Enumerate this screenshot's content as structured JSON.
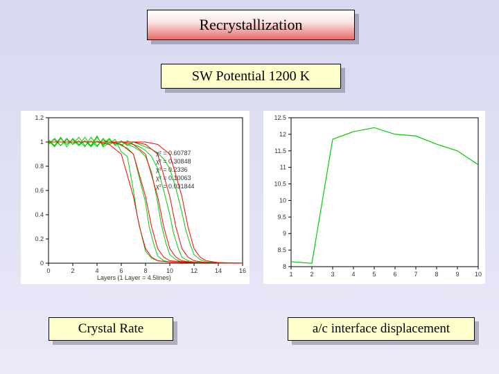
{
  "title": "Recrystallization",
  "subtitle": "SW Potential  1200 K",
  "label_left": "Crystal Rate",
  "label_right": "a/c interface displacement",
  "left_chart": {
    "type": "line",
    "background_color": "#ffffff",
    "axis_color": "#000000",
    "grid_on": false,
    "xlim": [
      0,
      16
    ],
    "ylim": [
      0,
      1.2
    ],
    "xtick_step": 2,
    "ytick_step": 0.2,
    "x_ticks": [
      "0",
      "2",
      "4",
      "6",
      "8",
      "10",
      "12",
      "14",
      "16"
    ],
    "y_ticks": [
      "0",
      "0.2",
      "0.4",
      "0.6",
      "0.8",
      "1",
      "1.2"
    ],
    "xlabel": "Layers (1 Layer = 4.5lines)",
    "label_fontsize": 9,
    "line_width": 1.0,
    "noise_color": "#00cc00",
    "fit_color": "#ff0000",
    "legend_items": [
      "χ² = 0.60787",
      "χ² = 0.30848",
      "χ² = 0.2336",
      "χ² = 0.10063",
      "χ² = 0.031844"
    ],
    "series": [
      {
        "x": [
          0,
          1,
          2,
          3,
          4,
          5,
          6,
          7,
          7.5,
          8,
          8.5,
          9,
          10,
          12,
          16
        ],
        "y": [
          1.0,
          1.0,
          1.0,
          1.0,
          1.0,
          0.98,
          0.9,
          0.55,
          0.3,
          0.12,
          0.05,
          0.02,
          0.01,
          0.005,
          0.0
        ]
      },
      {
        "x": [
          0,
          1,
          2,
          3,
          4,
          5,
          6,
          7,
          8,
          8.5,
          9,
          9.5,
          10,
          12,
          16
        ],
        "y": [
          1.0,
          1.0,
          1.0,
          1.0,
          1.0,
          1.0,
          0.98,
          0.9,
          0.55,
          0.3,
          0.12,
          0.05,
          0.02,
          0.005,
          0.0
        ]
      },
      {
        "x": [
          0,
          1,
          2,
          3,
          4,
          5,
          6,
          7,
          8,
          9,
          9.5,
          10,
          10.5,
          11,
          12,
          16
        ],
        "y": [
          1.0,
          1.0,
          1.0,
          1.0,
          1.0,
          1.0,
          1.0,
          0.98,
          0.9,
          0.55,
          0.3,
          0.12,
          0.05,
          0.02,
          0.005,
          0.0
        ]
      },
      {
        "x": [
          0,
          1,
          2,
          3,
          4,
          5,
          6,
          7,
          8,
          9,
          10,
          10.5,
          11,
          11.5,
          12,
          13,
          16
        ],
        "y": [
          1.0,
          1.0,
          1.0,
          1.0,
          1.0,
          1.0,
          1.0,
          1.0,
          0.98,
          0.9,
          0.55,
          0.3,
          0.12,
          0.05,
          0.02,
          0.005,
          0.0
        ]
      },
      {
        "x": [
          0,
          1,
          2,
          3,
          4,
          5,
          6,
          7,
          8,
          9,
          10,
          11,
          11.5,
          12,
          12.5,
          13,
          14,
          16
        ],
        "y": [
          1.0,
          1.0,
          1.0,
          1.0,
          1.0,
          1.0,
          1.0,
          1.0,
          1.0,
          0.98,
          0.9,
          0.55,
          0.3,
          0.12,
          0.05,
          0.02,
          0.005,
          0.0
        ]
      }
    ],
    "noise_series": [
      {
        "x": [
          0,
          0.5,
          1,
          1.5,
          2,
          2.5,
          3,
          3.5,
          4,
          4.5,
          5,
          5.5,
          6,
          6.5,
          7,
          7.3,
          7.7,
          8,
          8.5,
          9,
          10,
          12,
          16
        ],
        "y": [
          1.02,
          0.97,
          1.04,
          0.96,
          1.03,
          0.98,
          1.01,
          0.97,
          1.05,
          0.96,
          0.99,
          1.02,
          0.92,
          0.88,
          0.6,
          0.4,
          0.22,
          0.1,
          0.04,
          0.02,
          0.01,
          0.005,
          0.0
        ]
      },
      {
        "x": [
          0,
          0.5,
          1,
          1.5,
          2,
          2.5,
          3,
          3.5,
          4,
          4.5,
          5,
          5.5,
          6,
          6.5,
          7,
          7.5,
          8,
          8.3,
          8.7,
          9,
          9.5,
          10,
          12,
          16
        ],
        "y": [
          0.98,
          1.03,
          0.97,
          1.02,
          0.98,
          1.04,
          0.97,
          1.01,
          0.96,
          1.03,
          0.98,
          1.0,
          0.97,
          0.95,
          0.9,
          0.7,
          0.5,
          0.3,
          0.15,
          0.06,
          0.02,
          0.01,
          0.005,
          0.0
        ]
      },
      {
        "x": [
          0,
          0.5,
          1,
          1.5,
          2,
          2.5,
          3,
          3.5,
          4,
          4.5,
          5,
          5.5,
          6,
          6.5,
          7,
          7.5,
          8,
          8.5,
          9,
          9.3,
          9.7,
          10,
          10.5,
          11,
          12,
          16
        ],
        "y": [
          1.01,
          0.96,
          1.03,
          0.98,
          1.02,
          0.97,
          1.04,
          0.96,
          1.01,
          0.98,
          1.03,
          0.97,
          1.0,
          0.98,
          0.96,
          0.93,
          0.88,
          0.75,
          0.5,
          0.32,
          0.16,
          0.07,
          0.03,
          0.01,
          0.005,
          0.0
        ]
      },
      {
        "x": [
          0,
          0.5,
          1,
          1.5,
          2,
          2.5,
          3,
          3.5,
          4,
          4.5,
          5,
          5.5,
          6,
          6.5,
          7,
          7.5,
          8,
          8.5,
          9,
          9.5,
          10,
          10.3,
          10.7,
          11,
          11.5,
          12,
          13,
          16
        ],
        "y": [
          0.99,
          1.02,
          0.97,
          1.03,
          0.98,
          1.01,
          0.96,
          1.04,
          0.97,
          1.02,
          0.98,
          1.0,
          0.97,
          1.01,
          0.98,
          0.96,
          0.93,
          0.88,
          0.78,
          0.6,
          0.4,
          0.25,
          0.12,
          0.05,
          0.02,
          0.01,
          0.005,
          0.0
        ]
      },
      {
        "x": [
          0,
          0.5,
          1,
          1.5,
          2,
          2.5,
          3,
          3.5,
          4,
          4.5,
          5,
          5.5,
          6,
          6.5,
          7,
          7.5,
          8,
          8.5,
          9,
          9.5,
          10,
          10.5,
          11,
          11.3,
          11.7,
          12,
          12.5,
          13,
          14,
          16
        ],
        "y": [
          1.0,
          0.97,
          1.03,
          0.98,
          1.02,
          0.97,
          1.01,
          0.96,
          1.04,
          0.97,
          1.02,
          0.98,
          1.01,
          0.97,
          1.0,
          0.98,
          0.96,
          0.94,
          0.91,
          0.86,
          0.78,
          0.62,
          0.42,
          0.28,
          0.15,
          0.07,
          0.03,
          0.01,
          0.005,
          0.0
        ]
      }
    ]
  },
  "right_chart": {
    "type": "line",
    "background_color": "#ffffff",
    "axis_color": "#000000",
    "grid_on": false,
    "xlim": [
      1,
      10
    ],
    "ylim": [
      8,
      12.5
    ],
    "xtick_step": 1,
    "ytick_step": 0.5,
    "x_ticks": [
      "1",
      "2",
      "3",
      "4",
      "5",
      "6",
      "7",
      "8",
      "9",
      "10"
    ],
    "y_ticks": [
      "8",
      "8.5",
      "9",
      "9.5",
      "10",
      "10.5",
      "11",
      "11.5",
      "12",
      "12.5"
    ],
    "label_fontsize": 9,
    "line_color": "#00cc00",
    "line_width": 1.2,
    "data": {
      "x": [
        1,
        2,
        3,
        4,
        5,
        6,
        7,
        8,
        9,
        10
      ],
      "y": [
        8.15,
        8.1,
        11.85,
        12.08,
        12.2,
        12.0,
        11.95,
        11.7,
        11.5,
        11.08
      ]
    }
  }
}
